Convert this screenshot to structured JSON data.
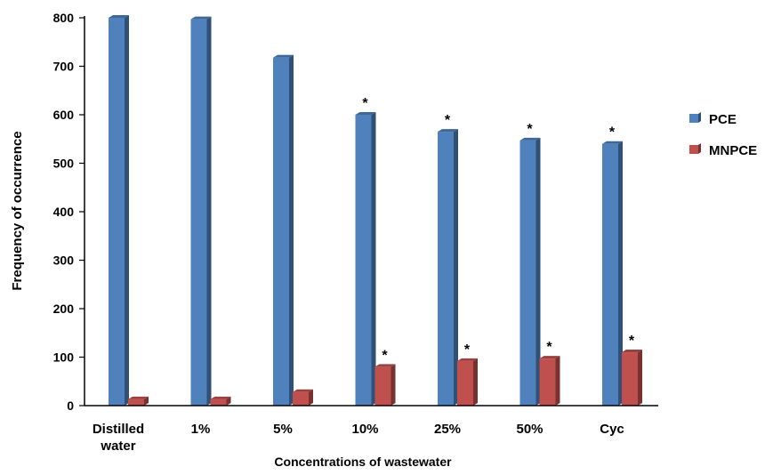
{
  "chart_data": {
    "type": "bar",
    "title": "",
    "xlabel": "Concentrations of wastewater",
    "ylabel": "Frequency of occurrence",
    "ylim": [
      0,
      800
    ],
    "yticks": [
      "0",
      "100",
      "200",
      "300",
      "400",
      "500",
      "600",
      "700",
      "800"
    ],
    "categories": [
      [
        "Distilled",
        "water"
      ],
      [
        "1%"
      ],
      [
        "5%"
      ],
      [
        "10%"
      ],
      [
        "25%"
      ],
      [
        "50%"
      ],
      [
        "Cyc"
      ]
    ],
    "series": [
      {
        "name": "PCE",
        "color": "#4f81bd",
        "values": [
          800,
          797,
          718,
          600,
          565,
          547,
          540
        ],
        "significance": [
          "",
          "",
          "",
          "*",
          "*",
          "*",
          "*"
        ]
      },
      {
        "name": "MNPCE",
        "color": "#c0504d",
        "values": [
          13,
          13,
          28,
          80,
          92,
          97,
          110
        ],
        "significance": [
          "",
          "",
          "",
          "*",
          "*",
          "*",
          "*"
        ]
      }
    ],
    "grid": false,
    "legend": "right"
  }
}
